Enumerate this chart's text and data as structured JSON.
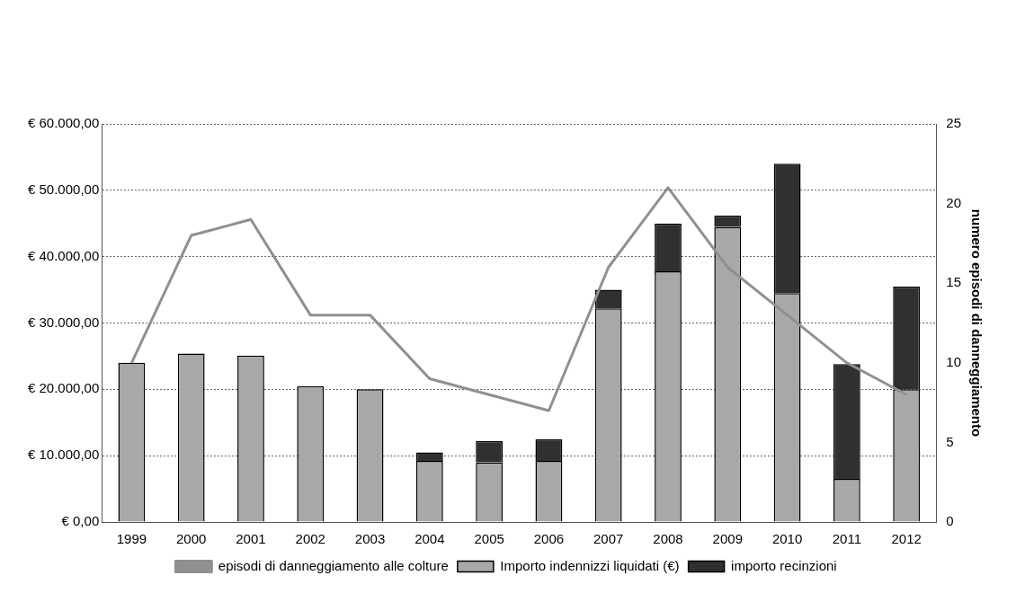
{
  "chart_data": {
    "type": "bar",
    "stacked": true,
    "categories": [
      "1999",
      "2000",
      "2001",
      "2002",
      "2003",
      "2004",
      "2005",
      "2006",
      "2007",
      "2008",
      "2009",
      "2010",
      "2011",
      "2012"
    ],
    "series": [
      {
        "name": "Importo indennizzi liquidati (€)",
        "color": "#a8a8a8",
        "values": [
          24000,
          25400,
          25100,
          20500,
          20000,
          9200,
          9000,
          9200,
          32200,
          37800,
          44500,
          34500,
          6500,
          20000
        ]
      },
      {
        "name": "importo recinzioni",
        "color": "#303030",
        "values": [
          null,
          null,
          null,
          null,
          null,
          1300,
          3200,
          3300,
          2800,
          7200,
          1700,
          19500,
          17300,
          15500
        ]
      },
      {
        "name": "episodi di danneggiamento alle colture",
        "type": "line",
        "axis": "y2",
        "color": "#909090",
        "values": [
          10,
          18,
          19,
          13,
          13,
          9,
          8,
          7,
          16,
          21,
          16,
          13,
          10,
          8
        ]
      }
    ],
    "ylim": [
      0,
      60000
    ],
    "yticks": [
      {
        "value": 0,
        "label": "€ 0,00"
      },
      {
        "value": 10000,
        "label": "€ 10.000,00"
      },
      {
        "value": 20000,
        "label": "€ 20.000,00"
      },
      {
        "value": 30000,
        "label": "€ 30.000,00"
      },
      {
        "value": 40000,
        "label": "€ 40.000,00"
      },
      {
        "value": 50000,
        "label": "€ 50.000,00"
      },
      {
        "value": 60000,
        "label": "€ 60.000,00"
      }
    ],
    "y2lim": [
      0,
      25
    ],
    "y2ticks": [
      0,
      5,
      10,
      15,
      20,
      25
    ],
    "y2label": "numero episodi di danneggiamento",
    "grid": "y",
    "legend": "bottom",
    "marker": "none"
  }
}
